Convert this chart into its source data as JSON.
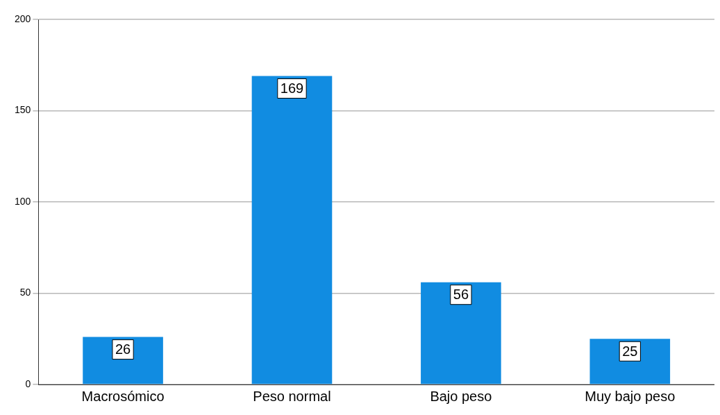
{
  "chart_data": {
    "type": "bar",
    "categories": [
      "Macrosómico",
      "Peso normal",
      "Bajo peso",
      "Muy bajo peso"
    ],
    "values": [
      26,
      169,
      56,
      25
    ],
    "color": "#118ce1",
    "ylim": [
      0,
      200
    ],
    "yticks": [
      0,
      50,
      100,
      150,
      200
    ],
    "grid": "y",
    "data_labels": true
  }
}
